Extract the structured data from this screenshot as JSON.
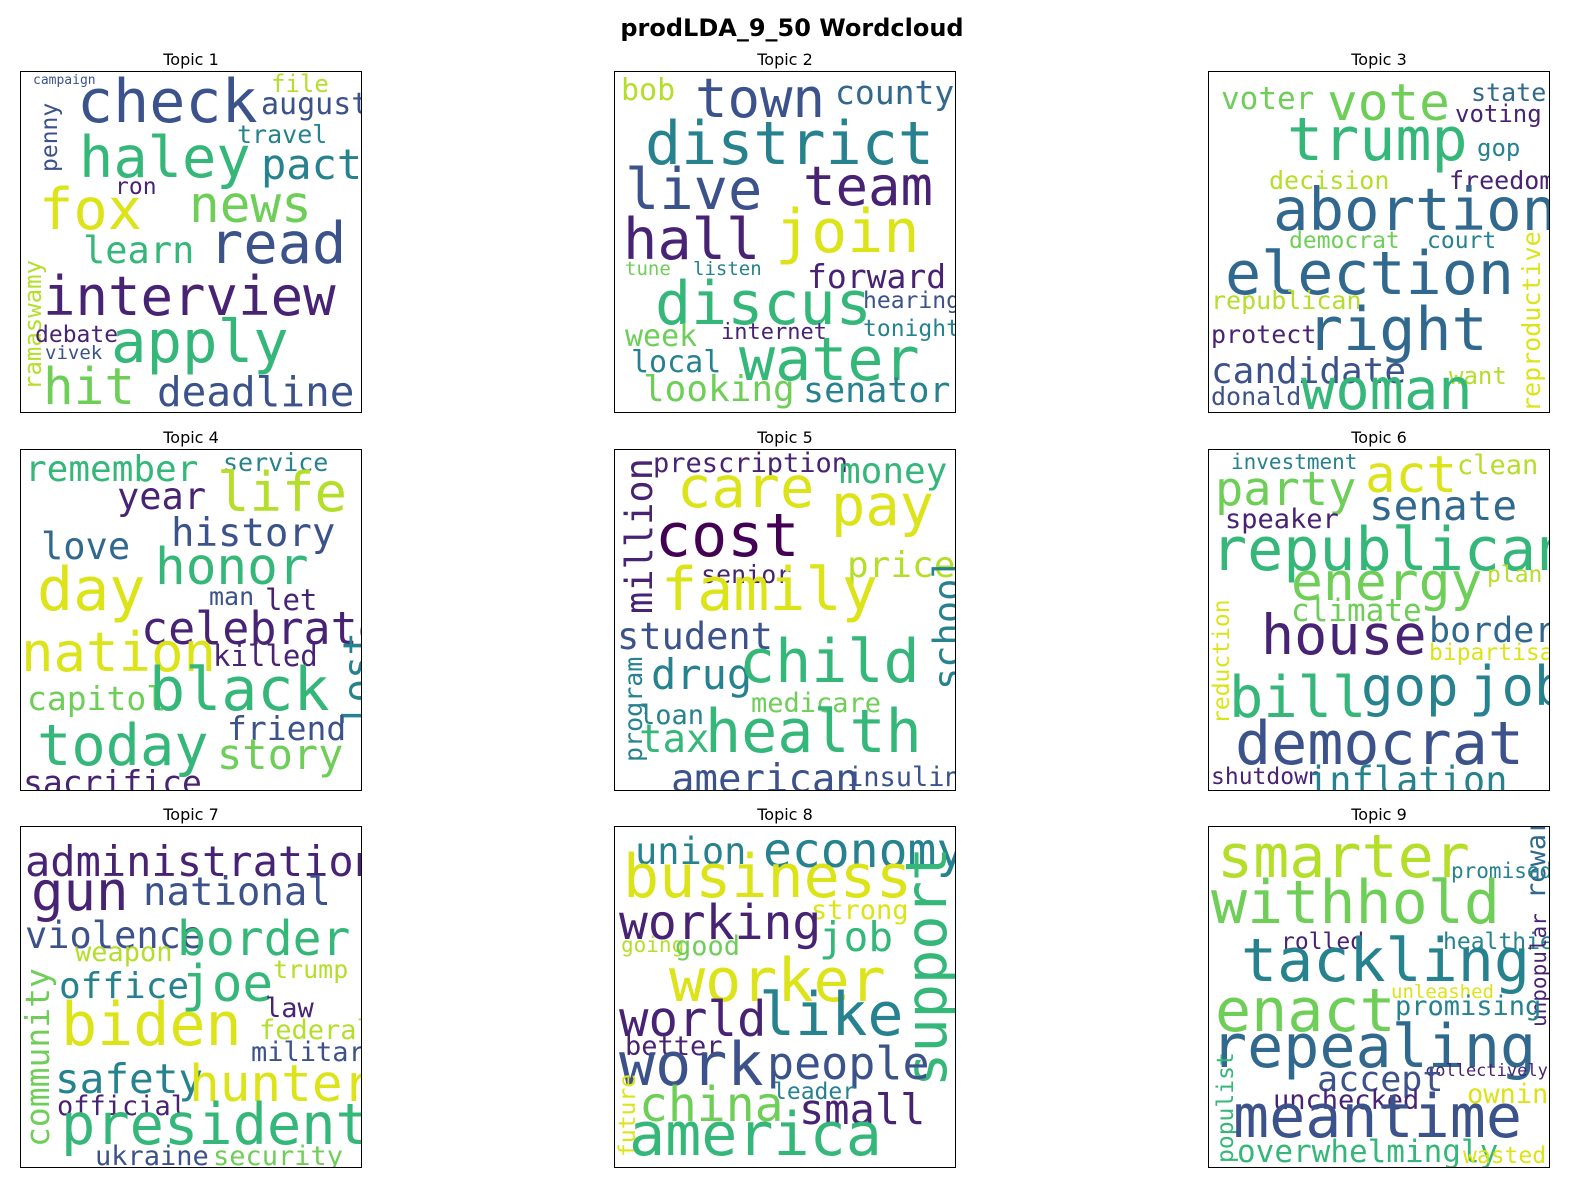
{
  "figure": {
    "title": "prodLDA_9_50 Wordcloud"
  },
  "palette": {
    "purple": "#482374",
    "indigo": "#3b528b",
    "blue": "#31688e",
    "teal": "#26828e",
    "green": "#35b779",
    "lime": "#6ece58",
    "yellowgreen": "#b5de2b",
    "yellow": "#dce319",
    "deep": "#440154"
  },
  "topics": [
    {
      "title": "Topic 1",
      "words": [
        {
          "t": "campaign",
          "c": "indigo",
          "s": 0.22
        },
        {
          "t": "check",
          "c": "indigo",
          "s": 1.0
        },
        {
          "t": "file",
          "c": "yellowgreen",
          "s": 0.4
        },
        {
          "t": "august",
          "c": "indigo",
          "s": 0.5
        },
        {
          "t": "penny",
          "c": "indigo",
          "s": 0.38,
          "rot": true
        },
        {
          "t": "haley",
          "c": "green",
          "s": 0.95
        },
        {
          "t": "travel",
          "c": "teal",
          "s": 0.42
        },
        {
          "t": "pact",
          "c": "teal",
          "s": 0.7
        },
        {
          "t": "ron",
          "c": "purple",
          "s": 0.38
        },
        {
          "t": "fox",
          "c": "yellow",
          "s": 0.95
        },
        {
          "t": "news",
          "c": "lime",
          "s": 0.85
        },
        {
          "t": "learn",
          "c": "green",
          "s": 0.62
        },
        {
          "t": "read",
          "c": "indigo",
          "s": 0.95
        },
        {
          "t": "ramaswamy",
          "c": "yellowgreen",
          "s": 0.4,
          "rot": true
        },
        {
          "t": "interview",
          "c": "purple",
          "s": 0.9
        },
        {
          "t": "debate",
          "c": "purple",
          "s": 0.38
        },
        {
          "t": "apply",
          "c": "green",
          "s": 0.98
        },
        {
          "t": "vivek",
          "c": "indigo",
          "s": 0.32
        },
        {
          "t": "hit",
          "c": "lime",
          "s": 0.85
        },
        {
          "t": "deadline",
          "c": "indigo",
          "s": 0.68
        }
      ]
    },
    {
      "title": "Topic 2",
      "words": [
        {
          "t": "bob",
          "c": "yellowgreen",
          "s": 0.5
        },
        {
          "t": "town",
          "c": "indigo",
          "s": 0.9
        },
        {
          "t": "county",
          "c": "blue",
          "s": 0.55
        },
        {
          "t": "district",
          "c": "teal",
          "s": 1.0
        },
        {
          "t": "live",
          "c": "indigo",
          "s": 0.95
        },
        {
          "t": "team",
          "c": "purple",
          "s": 0.9
        },
        {
          "t": "hall",
          "c": "purple",
          "s": 0.95
        },
        {
          "t": "join",
          "c": "yellow",
          "s": 1.0
        },
        {
          "t": "tune",
          "c": "lime",
          "s": 0.32
        },
        {
          "t": "listen",
          "c": "teal",
          "s": 0.32
        },
        {
          "t": "forward",
          "c": "purple",
          "s": 0.55
        },
        {
          "t": "discus",
          "c": "green",
          "s": 1.0
        },
        {
          "t": "hearing",
          "c": "indigo",
          "s": 0.38
        },
        {
          "t": "week",
          "c": "lime",
          "s": 0.5
        },
        {
          "t": "internet",
          "c": "purple",
          "s": 0.36
        },
        {
          "t": "tonight",
          "c": "teal",
          "s": 0.38
        },
        {
          "t": "water",
          "c": "green",
          "s": 1.0
        },
        {
          "t": "local",
          "c": "teal",
          "s": 0.5
        },
        {
          "t": "looking",
          "c": "lime",
          "s": 0.6
        },
        {
          "t": "senator",
          "c": "teal",
          "s": 0.58
        }
      ]
    },
    {
      "title": "Topic 3",
      "words": [
        {
          "t": "voter",
          "c": "lime",
          "s": 0.52
        },
        {
          "t": "vote",
          "c": "lime",
          "s": 0.85
        },
        {
          "t": "state",
          "c": "blue",
          "s": 0.42
        },
        {
          "t": "voting",
          "c": "purple",
          "s": 0.4
        },
        {
          "t": "trump",
          "c": "green",
          "s": 1.0
        },
        {
          "t": "gop",
          "c": "teal",
          "s": 0.4
        },
        {
          "t": "decision",
          "c": "yellowgreen",
          "s": 0.42
        },
        {
          "t": "freedom",
          "c": "purple",
          "s": 0.42
        },
        {
          "t": "abortion",
          "c": "blue",
          "s": 0.98
        },
        {
          "t": "democrat",
          "c": "lime",
          "s": 0.38
        },
        {
          "t": "court",
          "c": "teal",
          "s": 0.38
        },
        {
          "t": "election",
          "c": "blue",
          "s": 1.0
        },
        {
          "t": "reproductive",
          "c": "yellow",
          "s": 0.42,
          "rot": true
        },
        {
          "t": "republican",
          "c": "yellowgreen",
          "s": 0.42
        },
        {
          "t": "protect",
          "c": "purple",
          "s": 0.42
        },
        {
          "t": "right",
          "c": "blue",
          "s": 1.0
        },
        {
          "t": "candidate",
          "c": "indigo",
          "s": 0.6
        },
        {
          "t": "want",
          "c": "yellowgreen",
          "s": 0.4
        },
        {
          "t": "donald",
          "c": "indigo",
          "s": 0.42
        },
        {
          "t": "woman",
          "c": "green",
          "s": 0.95
        }
      ]
    },
    {
      "title": "Topic 4",
      "words": [
        {
          "t": "remember",
          "c": "green",
          "s": 0.6
        },
        {
          "t": "service",
          "c": "teal",
          "s": 0.42
        },
        {
          "t": "year",
          "c": "purple",
          "s": 0.62
        },
        {
          "t": "life",
          "c": "yellowgreen",
          "s": 0.9
        },
        {
          "t": "history",
          "c": "indigo",
          "s": 0.65
        },
        {
          "t": "love",
          "c": "blue",
          "s": 0.62
        },
        {
          "t": "honor",
          "c": "green",
          "s": 0.85
        },
        {
          "t": "day",
          "c": "yellow",
          "s": 1.0
        },
        {
          "t": "man",
          "c": "indigo",
          "s": 0.42
        },
        {
          "t": "let",
          "c": "purple",
          "s": 0.48
        },
        {
          "t": "celebrate",
          "c": "purple",
          "s": 0.75
        },
        {
          "t": "nation",
          "c": "yellow",
          "s": 0.9
        },
        {
          "t": "killed",
          "c": "purple",
          "s": 0.48
        },
        {
          "t": "lost",
          "c": "teal",
          "s": 0.65,
          "rot": true
        },
        {
          "t": "capitol",
          "c": "lime",
          "s": 0.55
        },
        {
          "t": "black",
          "c": "green",
          "s": 1.0
        },
        {
          "t": "friend",
          "c": "indigo",
          "s": 0.55
        },
        {
          "t": "today",
          "c": "green",
          "s": 0.95
        },
        {
          "t": "story",
          "c": "lime",
          "s": 0.7
        },
        {
          "t": "sacrifice",
          "c": "purple",
          "s": 0.55
        }
      ]
    },
    {
      "title": "Topic 5",
      "words": [
        {
          "t": "prescription",
          "c": "purple",
          "s": 0.45
        },
        {
          "t": "money",
          "c": "green",
          "s": 0.6
        },
        {
          "t": "million",
          "c": "purple",
          "s": 0.62,
          "rot": true
        },
        {
          "t": "care",
          "c": "yellow",
          "s": 0.95
        },
        {
          "t": "pay",
          "c": "yellow",
          "s": 0.95
        },
        {
          "t": "cost",
          "c": "deep",
          "s": 1.0
        },
        {
          "t": "price",
          "c": "yellowgreen",
          "s": 0.6
        },
        {
          "t": "senior",
          "c": "purple",
          "s": 0.42
        },
        {
          "t": "family",
          "c": "yellow",
          "s": 1.0
        },
        {
          "t": "school",
          "c": "teal",
          "s": 0.62,
          "rot": true
        },
        {
          "t": "student",
          "c": "indigo",
          "s": 0.62
        },
        {
          "t": "program",
          "c": "teal",
          "s": 0.42,
          "rot": true
        },
        {
          "t": "drug",
          "c": "teal",
          "s": 0.7
        },
        {
          "t": "child",
          "c": "green",
          "s": 1.0
        },
        {
          "t": "medicare",
          "c": "lime",
          "s": 0.45
        },
        {
          "t": "loan",
          "c": "teal",
          "s": 0.45
        },
        {
          "t": "tax",
          "c": "green",
          "s": 0.65
        },
        {
          "t": "health",
          "c": "green",
          "s": 1.0
        },
        {
          "t": "american",
          "c": "indigo",
          "s": 0.65
        },
        {
          "t": "insulin",
          "c": "indigo",
          "s": 0.45
        }
      ]
    },
    {
      "title": "Topic 6",
      "words": [
        {
          "t": "investment",
          "c": "teal",
          "s": 0.35
        },
        {
          "t": "act",
          "c": "yellow",
          "s": 0.85
        },
        {
          "t": "clean",
          "c": "yellowgreen",
          "s": 0.45
        },
        {
          "t": "party",
          "c": "lime",
          "s": 0.78
        },
        {
          "t": "senate",
          "c": "blue",
          "s": 0.68
        },
        {
          "t": "speaker",
          "c": "purple",
          "s": 0.45
        },
        {
          "t": "republican",
          "c": "green",
          "s": 1.0
        },
        {
          "t": "energy",
          "c": "lime",
          "s": 0.88
        },
        {
          "t": "plan",
          "c": "yellowgreen",
          "s": 0.38
        },
        {
          "t": "climate",
          "c": "lime",
          "s": 0.52
        },
        {
          "t": "house",
          "c": "purple",
          "s": 0.92
        },
        {
          "t": "border",
          "c": "blue",
          "s": 0.58
        },
        {
          "t": "bipartisan",
          "c": "yellow",
          "s": 0.38
        },
        {
          "t": "reduction",
          "c": "yellow",
          "s": 0.38,
          "rot": true
        },
        {
          "t": "bill",
          "c": "green",
          "s": 0.95
        },
        {
          "t": "gop",
          "c": "teal",
          "s": 0.9
        },
        {
          "t": "job",
          "c": "teal",
          "s": 0.9
        },
        {
          "t": "democrat",
          "c": "indigo",
          "s": 1.0
        },
        {
          "t": "shutdown",
          "c": "purple",
          "s": 0.38
        },
        {
          "t": "inflation",
          "c": "teal",
          "s": 0.62
        }
      ]
    },
    {
      "title": "Topic 7",
      "words": [
        {
          "t": "administration",
          "c": "purple",
          "s": 0.7
        },
        {
          "t": "gun",
          "c": "purple",
          "s": 0.9
        },
        {
          "t": "national",
          "c": "indigo",
          "s": 0.65
        },
        {
          "t": "violence",
          "c": "indigo",
          "s": 0.62
        },
        {
          "t": "border",
          "c": "green",
          "s": 0.8
        },
        {
          "t": "community",
          "c": "lime",
          "s": 0.55,
          "rot": true
        },
        {
          "t": "weapon",
          "c": "yellowgreen",
          "s": 0.45
        },
        {
          "t": "trump",
          "c": "yellowgreen",
          "s": 0.42
        },
        {
          "t": "office",
          "c": "teal",
          "s": 0.6
        },
        {
          "t": "joe",
          "c": "green",
          "s": 0.85
        },
        {
          "t": "law",
          "c": "purple",
          "s": 0.45
        },
        {
          "t": "biden",
          "c": "yellow",
          "s": 1.0
        },
        {
          "t": "federal",
          "c": "yellowgreen",
          "s": 0.45
        },
        {
          "t": "military",
          "c": "indigo",
          "s": 0.45
        },
        {
          "t": "safety",
          "c": "teal",
          "s": 0.68
        },
        {
          "t": "hunter",
          "c": "yellow",
          "s": 0.85
        },
        {
          "t": "official",
          "c": "purple",
          "s": 0.45
        },
        {
          "t": "president",
          "c": "green",
          "s": 0.95
        },
        {
          "t": "ukraine",
          "c": "indigo",
          "s": 0.45
        },
        {
          "t": "security",
          "c": "lime",
          "s": 0.45
        }
      ]
    },
    {
      "title": "Topic 8",
      "words": [
        {
          "t": "union",
          "c": "teal",
          "s": 0.62
        },
        {
          "t": "economy",
          "c": "teal",
          "s": 0.8
        },
        {
          "t": "business",
          "c": "yellow",
          "s": 1.0
        },
        {
          "t": "strong",
          "c": "yellow",
          "s": 0.45
        },
        {
          "t": "working",
          "c": "purple",
          "s": 0.8
        },
        {
          "t": "job",
          "c": "green",
          "s": 0.68
        },
        {
          "t": "going",
          "c": "yellowgreen",
          "s": 0.35
        },
        {
          "t": "good",
          "c": "lime",
          "s": 0.45
        },
        {
          "t": "support",
          "c": "green",
          "s": 0.95,
          "rot": true
        },
        {
          "t": "worker",
          "c": "yellow",
          "s": 1.0
        },
        {
          "t": "world",
          "c": "purple",
          "s": 0.82
        },
        {
          "t": "like",
          "c": "teal",
          "s": 1.0
        },
        {
          "t": "better",
          "c": "purple",
          "s": 0.45
        },
        {
          "t": "work",
          "c": "indigo",
          "s": 1.0
        },
        {
          "t": "people",
          "c": "indigo",
          "s": 0.75
        },
        {
          "t": "leader",
          "c": "teal",
          "s": 0.38
        },
        {
          "t": "future",
          "c": "yellow",
          "s": 0.38,
          "rot": true
        },
        {
          "t": "china",
          "c": "lime",
          "s": 0.8
        },
        {
          "t": "small",
          "c": "purple",
          "s": 0.7
        },
        {
          "t": "america",
          "c": "green",
          "s": 1.0
        }
      ]
    },
    {
      "title": "Topic 9",
      "words": [
        {
          "t": "smarter",
          "c": "yellowgreen",
          "s": 1.0
        },
        {
          "t": "rewarded",
          "c": "blue",
          "s": 0.45,
          "rot": true
        },
        {
          "t": "promised",
          "c": "teal",
          "s": 0.35
        },
        {
          "t": "withhold",
          "c": "lime",
          "s": 1.0
        },
        {
          "t": "rolled",
          "c": "purple",
          "s": 0.38
        },
        {
          "t": "healthier",
          "c": "teal",
          "s": 0.38
        },
        {
          "t": "tackling",
          "c": "teal",
          "s": 1.0
        },
        {
          "t": "unleashed",
          "c": "yellow",
          "s": 0.32
        },
        {
          "t": "unpopular",
          "c": "purple",
          "s": 0.35,
          "rot": true
        },
        {
          "t": "enact",
          "c": "lime",
          "s": 1.0
        },
        {
          "t": "promising",
          "c": "teal",
          "s": 0.45
        },
        {
          "t": "repealing",
          "c": "blue",
          "s": 1.0
        },
        {
          "t": "populist",
          "c": "green",
          "s": 0.38,
          "rot": true
        },
        {
          "t": "collectively",
          "c": "purple",
          "s": 0.28
        },
        {
          "t": "accept",
          "c": "indigo",
          "s": 0.58
        },
        {
          "t": "owning",
          "c": "yellow",
          "s": 0.45
        },
        {
          "t": "unchecked",
          "c": "purple",
          "s": 0.45
        },
        {
          "t": "meantime",
          "c": "indigo",
          "s": 1.0
        },
        {
          "t": "overwhelmingly",
          "c": "green",
          "s": 0.52
        },
        {
          "t": "wasted",
          "c": "yellow",
          "s": 0.38
        }
      ]
    }
  ]
}
